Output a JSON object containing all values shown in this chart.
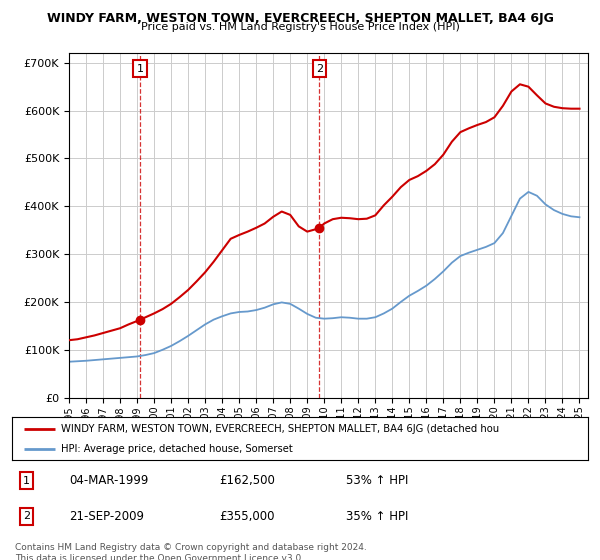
{
  "title": "WINDY FARM, WESTON TOWN, EVERCREECH, SHEPTON MALLET, BA4 6JG",
  "subtitle": "Price paid vs. HM Land Registry's House Price Index (HPI)",
  "legend_line1": "WINDY FARM, WESTON TOWN, EVERCREECH, SHEPTON MALLET, BA4 6JG (detached hou",
  "legend_line2": "HPI: Average price, detached house, Somerset",
  "annotation1_date": "04-MAR-1999",
  "annotation1_price": "£162,500",
  "annotation1_hpi": "53% ↑ HPI",
  "annotation2_date": "21-SEP-2009",
  "annotation2_price": "£355,000",
  "annotation2_hpi": "35% ↑ HPI",
  "footer": "Contains HM Land Registry data © Crown copyright and database right 2024.\nThis data is licensed under the Open Government Licence v3.0.",
  "red_color": "#cc0000",
  "blue_color": "#6699cc",
  "background_color": "#ffffff",
  "grid_color": "#cccccc",
  "sale1_year": 1999.17,
  "sale1_price": 162500,
  "sale2_year": 2009.72,
  "sale2_price": 355000,
  "red_line_years": [
    1995.0,
    1995.5,
    1996.0,
    1996.5,
    1997.0,
    1997.5,
    1998.0,
    1998.5,
    1999.17,
    1999.5,
    2000.0,
    2000.5,
    2001.0,
    2001.5,
    2002.0,
    2002.5,
    2003.0,
    2003.5,
    2004.0,
    2004.5,
    2005.0,
    2005.5,
    2006.0,
    2006.5,
    2007.0,
    2007.5,
    2008.0,
    2008.5,
    2009.0,
    2009.5,
    2009.72,
    2010.0,
    2010.5,
    2011.0,
    2011.5,
    2012.0,
    2012.5,
    2013.0,
    2013.5,
    2014.0,
    2014.5,
    2015.0,
    2015.5,
    2016.0,
    2016.5,
    2017.0,
    2017.5,
    2018.0,
    2018.5,
    2019.0,
    2019.5,
    2020.0,
    2020.5,
    2021.0,
    2021.5,
    2022.0,
    2022.5,
    2023.0,
    2023.5,
    2024.0,
    2024.5,
    2025.0
  ],
  "red_line_values": [
    120000,
    122000,
    126000,
    130000,
    135000,
    140000,
    145000,
    153000,
    162500,
    168000,
    176000,
    185000,
    196000,
    210000,
    225000,
    243000,
    262000,
    284000,
    308000,
    332000,
    340000,
    347000,
    355000,
    364000,
    378000,
    389000,
    382000,
    358000,
    347000,
    352000,
    355000,
    364000,
    373000,
    376000,
    375000,
    373000,
    374000,
    381000,
    402000,
    420000,
    440000,
    455000,
    463000,
    474000,
    488000,
    508000,
    535000,
    555000,
    563000,
    570000,
    576000,
    586000,
    610000,
    640000,
    655000,
    650000,
    632000,
    615000,
    608000,
    605000,
    604000,
    604000
  ],
  "blue_line_years": [
    1995.0,
    1995.5,
    1996.0,
    1996.5,
    1997.0,
    1997.5,
    1998.0,
    1998.5,
    1999.0,
    1999.5,
    2000.0,
    2000.5,
    2001.0,
    2001.5,
    2002.0,
    2002.5,
    2003.0,
    2003.5,
    2004.0,
    2004.5,
    2005.0,
    2005.5,
    2006.0,
    2006.5,
    2007.0,
    2007.5,
    2008.0,
    2008.5,
    2009.0,
    2009.5,
    2010.0,
    2010.5,
    2011.0,
    2011.5,
    2012.0,
    2012.5,
    2013.0,
    2013.5,
    2014.0,
    2014.5,
    2015.0,
    2015.5,
    2016.0,
    2016.5,
    2017.0,
    2017.5,
    2018.0,
    2018.5,
    2019.0,
    2019.5,
    2020.0,
    2020.5,
    2021.0,
    2021.5,
    2022.0,
    2022.5,
    2023.0,
    2023.5,
    2024.0,
    2024.5,
    2025.0
  ],
  "blue_line_values": [
    75000,
    76000,
    77000,
    78500,
    80000,
    81500,
    83000,
    84500,
    86000,
    89000,
    93000,
    100000,
    108000,
    118000,
    129000,
    141000,
    153000,
    163000,
    170000,
    176000,
    179000,
    180000,
    183000,
    188000,
    195000,
    199000,
    196000,
    186000,
    175000,
    167000,
    165000,
    166000,
    168000,
    167000,
    165000,
    165000,
    168000,
    176000,
    186000,
    200000,
    213000,
    223000,
    234000,
    248000,
    264000,
    282000,
    296000,
    303000,
    309000,
    315000,
    323000,
    344000,
    380000,
    416000,
    430000,
    422000,
    404000,
    392000,
    384000,
    379000,
    377000
  ]
}
